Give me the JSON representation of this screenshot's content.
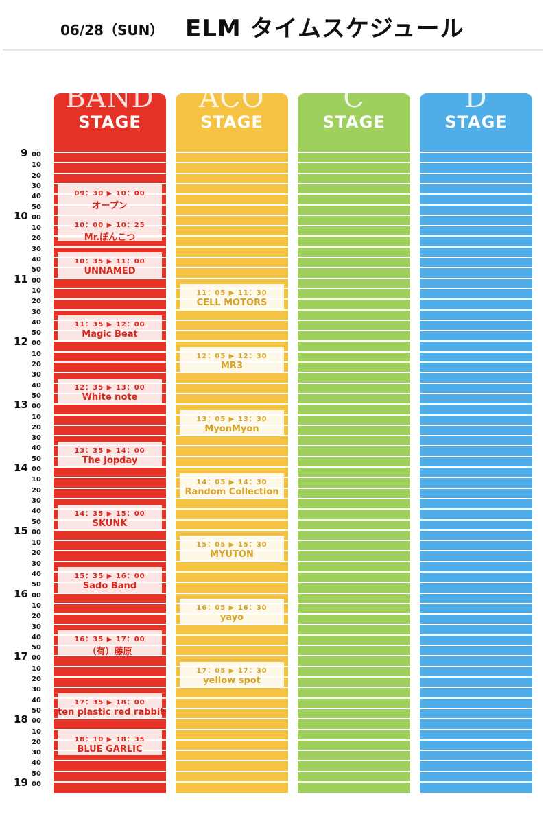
{
  "header": {
    "date": "06/28（SUN）",
    "title": "ELM タイムスケジュール"
  },
  "stages": [
    {
      "big": "BAND",
      "label": "STAGE",
      "color": "#e53227"
    },
    {
      "big": "ACO",
      "label": "STAGE",
      "color": "#f5c343"
    },
    {
      "big": "C",
      "label": "STAGE",
      "color": "#9fcf5d"
    },
    {
      "big": "D",
      "label": "STAGE",
      "color": "#4faee7"
    }
  ],
  "time_axis": [
    {
      "h": "9",
      "m": "00"
    },
    {
      "h": "",
      "m": "10"
    },
    {
      "h": "",
      "m": "20"
    },
    {
      "h": "",
      "m": "30"
    },
    {
      "h": "",
      "m": "40"
    },
    {
      "h": "",
      "m": "50"
    },
    {
      "h": "10",
      "m": "00"
    },
    {
      "h": "",
      "m": "10"
    },
    {
      "h": "",
      "m": "20"
    },
    {
      "h": "",
      "m": "30"
    },
    {
      "h": "",
      "m": "40"
    },
    {
      "h": "",
      "m": "50"
    },
    {
      "h": "11",
      "m": "00"
    },
    {
      "h": "",
      "m": "10"
    },
    {
      "h": "",
      "m": "20"
    },
    {
      "h": "",
      "m": "30"
    },
    {
      "h": "",
      "m": "40"
    },
    {
      "h": "",
      "m": "50"
    },
    {
      "h": "12",
      "m": "00"
    },
    {
      "h": "",
      "m": "10"
    },
    {
      "h": "",
      "m": "20"
    },
    {
      "h": "",
      "m": "30"
    },
    {
      "h": "",
      "m": "40"
    },
    {
      "h": "",
      "m": "50"
    },
    {
      "h": "13",
      "m": "00"
    },
    {
      "h": "",
      "m": "10"
    },
    {
      "h": "",
      "m": "20"
    },
    {
      "h": "",
      "m": "30"
    },
    {
      "h": "",
      "m": "40"
    },
    {
      "h": "",
      "m": "50"
    },
    {
      "h": "14",
      "m": "00"
    },
    {
      "h": "",
      "m": "10"
    },
    {
      "h": "",
      "m": "20"
    },
    {
      "h": "",
      "m": "30"
    },
    {
      "h": "",
      "m": "40"
    },
    {
      "h": "",
      "m": "50"
    },
    {
      "h": "15",
      "m": "00"
    },
    {
      "h": "",
      "m": "10"
    },
    {
      "h": "",
      "m": "20"
    },
    {
      "h": "",
      "m": "30"
    },
    {
      "h": "",
      "m": "40"
    },
    {
      "h": "",
      "m": "50"
    },
    {
      "h": "16",
      "m": "00"
    },
    {
      "h": "",
      "m": "10"
    },
    {
      "h": "",
      "m": "20"
    },
    {
      "h": "",
      "m": "30"
    },
    {
      "h": "",
      "m": "40"
    },
    {
      "h": "",
      "m": "50"
    },
    {
      "h": "17",
      "m": "00"
    },
    {
      "h": "",
      "m": "10"
    },
    {
      "h": "",
      "m": "20"
    },
    {
      "h": "",
      "m": "30"
    },
    {
      "h": "",
      "m": "40"
    },
    {
      "h": "",
      "m": "50"
    },
    {
      "h": "18",
      "m": "00"
    },
    {
      "h": "",
      "m": "10"
    },
    {
      "h": "",
      "m": "20"
    },
    {
      "h": "",
      "m": "30"
    },
    {
      "h": "",
      "m": "40"
    },
    {
      "h": "",
      "m": "50"
    },
    {
      "h": "19",
      "m": "00"
    }
  ],
  "band_slots": [
    {
      "time": "09：30 ▶ 10：00",
      "name": "オープン",
      "start": "09:30",
      "end": "10:00"
    },
    {
      "time": "10：00 ▶ 10：25",
      "name": "Mr.ぽんこつ",
      "start": "10:00",
      "end": "10:25"
    },
    {
      "time": "10：35 ▶ 11：00",
      "name": "UNNAMED",
      "start": "10:35",
      "end": "11:00"
    },
    {
      "time": "11：35 ▶ 12：00",
      "name": "Magic Beat",
      "start": "11:35",
      "end": "12:00"
    },
    {
      "time": "12：35 ▶ 13：00",
      "name": "White note",
      "start": "12:35",
      "end": "13:00"
    },
    {
      "time": "13：35 ▶ 14：00",
      "name": "The Jopday",
      "start": "13:35",
      "end": "14:00"
    },
    {
      "time": "14：35 ▶ 15：00",
      "name": "SKUNK",
      "start": "14:35",
      "end": "15:00"
    },
    {
      "time": "15：35 ▶ 16：00",
      "name": "Sado Band",
      "start": "15:35",
      "end": "16:00"
    },
    {
      "time": "16：35 ▶ 17：00",
      "name": "（有）藤原",
      "start": "16:35",
      "end": "17:00"
    },
    {
      "time": "17：35 ▶ 18：00",
      "name": "ten plastic red rabbit",
      "start": "17:35",
      "end": "18:00"
    },
    {
      "time": "18：10 ▶ 18：35",
      "name": "BLUE GARLIC",
      "start": "18:10",
      "end": "18:35"
    }
  ],
  "aco_slots": [
    {
      "time": "11：05 ▶ 11：30",
      "name": "CELL MOTORS",
      "start": "11:05",
      "end": "11:30"
    },
    {
      "time": "12：05 ▶ 12：30",
      "name": "MR3",
      "start": "12:05",
      "end": "12:30"
    },
    {
      "time": "13：05 ▶ 13：30",
      "name": "MyonMyon",
      "start": "13:05",
      "end": "13:30"
    },
    {
      "time": "14：05 ▶ 14：30",
      "name": "Random Collection",
      "start": "14:05",
      "end": "14:30"
    },
    {
      "time": "15：05 ▶ 15：30",
      "name": "MYUTON",
      "start": "15:05",
      "end": "15:30"
    },
    {
      "time": "16：05 ▶ 16：30",
      "name": "yayo",
      "start": "16:05",
      "end": "16:30"
    },
    {
      "time": "17：05 ▶ 17：30",
      "name": "yellow spot",
      "start": "17:05",
      "end": "17:30"
    }
  ]
}
